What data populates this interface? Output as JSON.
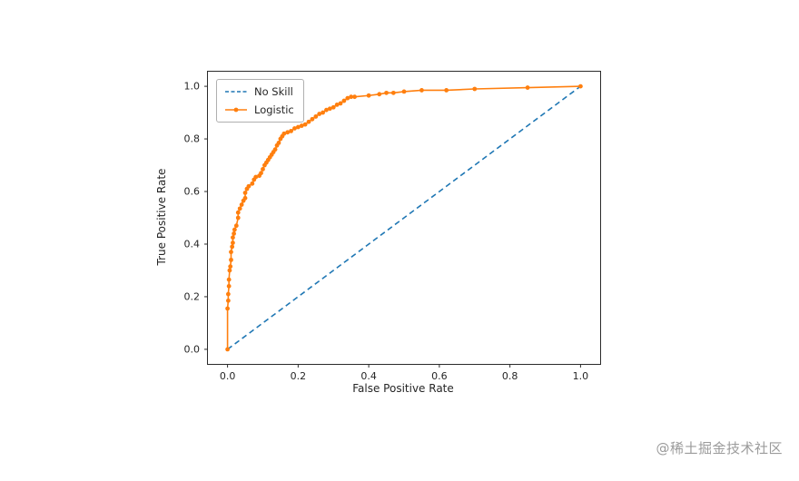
{
  "watermark": "@稀土掘金技术社区",
  "chart_data": {
    "type": "line",
    "title": "",
    "xlabel": "False Positive Rate",
    "ylabel": "True Positive Rate",
    "xlim": [
      0,
      1
    ],
    "ylim": [
      0,
      1
    ],
    "x_ticks": [
      0,
      0.2,
      0.4,
      0.6,
      0.8,
      1.0
    ],
    "y_ticks": [
      0,
      0.2,
      0.4,
      0.6,
      0.8,
      1.0
    ],
    "grid": false,
    "legend_position": "upper left",
    "series": [
      {
        "name": "No Skill",
        "color": "#1f77b4",
        "style": "dashed",
        "marker": "none",
        "x": [
          0,
          1
        ],
        "y": [
          0,
          1
        ]
      },
      {
        "name": "Logistic",
        "color": "#ff7f0e",
        "style": "solid",
        "marker": "dot",
        "x": [
          0,
          0,
          0.002,
          0.002,
          0.004,
          0.004,
          0.006,
          0.008,
          0.01,
          0.01,
          0.013,
          0.015,
          0.015,
          0.018,
          0.02,
          0.025,
          0.03,
          0.03,
          0.035,
          0.04,
          0.045,
          0.05,
          0.05,
          0.055,
          0.06,
          0.07,
          0.075,
          0.08,
          0.09,
          0.095,
          0.1,
          0.105,
          0.11,
          0.115,
          0.12,
          0.125,
          0.13,
          0.135,
          0.14,
          0.145,
          0.15,
          0.155,
          0.16,
          0.17,
          0.18,
          0.19,
          0.2,
          0.21,
          0.22,
          0.23,
          0.24,
          0.25,
          0.26,
          0.27,
          0.28,
          0.29,
          0.3,
          0.31,
          0.32,
          0.33,
          0.34,
          0.35,
          0.36,
          0.4,
          0.43,
          0.45,
          0.47,
          0.5,
          0.55,
          0.62,
          0.7,
          0.85,
          1
        ],
        "y": [
          0,
          0.155,
          0.185,
          0.21,
          0.24,
          0.265,
          0.3,
          0.315,
          0.34,
          0.37,
          0.39,
          0.405,
          0.425,
          0.44,
          0.455,
          0.47,
          0.5,
          0.52,
          0.535,
          0.55,
          0.565,
          0.575,
          0.595,
          0.61,
          0.62,
          0.63,
          0.645,
          0.655,
          0.66,
          0.67,
          0.685,
          0.7,
          0.71,
          0.72,
          0.73,
          0.74,
          0.75,
          0.76,
          0.775,
          0.785,
          0.8,
          0.81,
          0.82,
          0.825,
          0.83,
          0.84,
          0.845,
          0.85,
          0.855,
          0.865,
          0.875,
          0.885,
          0.895,
          0.9,
          0.91,
          0.915,
          0.92,
          0.93,
          0.935,
          0.945,
          0.955,
          0.96,
          0.96,
          0.965,
          0.97,
          0.975,
          0.975,
          0.98,
          0.985,
          0.985,
          0.99,
          0.995,
          1
        ]
      }
    ]
  }
}
